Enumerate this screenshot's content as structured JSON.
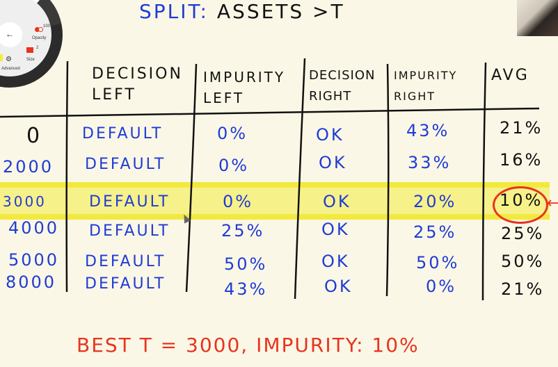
{
  "title": {
    "prefix": "SPLIT:",
    "text": "ASSETS >T"
  },
  "toolbar": {
    "opacity_value": "100",
    "opacity_label": "Opacity",
    "size_value": "2",
    "size_label": "Size",
    "advanced_label": "Advanced",
    "back_icon": "←",
    "accent_blue": "#0000ff"
  },
  "table": {
    "headers": {
      "decision_left": [
        "DECISION",
        "LEFT"
      ],
      "impurity_left": [
        "IMPURITY",
        "LEFT"
      ],
      "decision_right": [
        "DECISION",
        "RIGHT"
      ],
      "impurity_right": [
        "IMPURITY",
        "RIGHT"
      ],
      "avg": [
        "AVG"
      ]
    },
    "rows": [
      {
        "t": "0",
        "decision_left": "DEFAULT",
        "impurity_left": "0%",
        "decision_right": "OK",
        "impurity_right": "43%",
        "avg": "21%"
      },
      {
        "t": "2000",
        "decision_left": "DEFAULT",
        "impurity_left": "0%",
        "decision_right": "OK",
        "impurity_right": "33%",
        "avg": "16%"
      },
      {
        "t": "3000",
        "decision_left": "DEFAULT",
        "impurity_left": "0%",
        "decision_right": "OK",
        "impurity_right": "20%",
        "avg": "10%"
      },
      {
        "t": "4000",
        "decision_left": "DEFAULT",
        "impurity_left": "25%",
        "decision_right": "OK",
        "impurity_right": "25%",
        "avg": "25%"
      },
      {
        "t": "5000",
        "decision_left": "DEFAULT",
        "impurity_left": "50%",
        "decision_right": "OK",
        "impurity_right": "50%",
        "avg": "50%"
      },
      {
        "t": "8000",
        "decision_left": "DEFAULT",
        "impurity_left": "43%",
        "decision_right": "OK",
        "impurity_right": "0%",
        "avg": "21%"
      }
    ]
  },
  "conclusion": "BEST T = 3000, IMPURITY: 10%",
  "colors": {
    "ink_blue": "#1f3bd6",
    "ink_black": "#111111",
    "ink_red": "#e8331f",
    "highlight": "#f4ec3c"
  }
}
